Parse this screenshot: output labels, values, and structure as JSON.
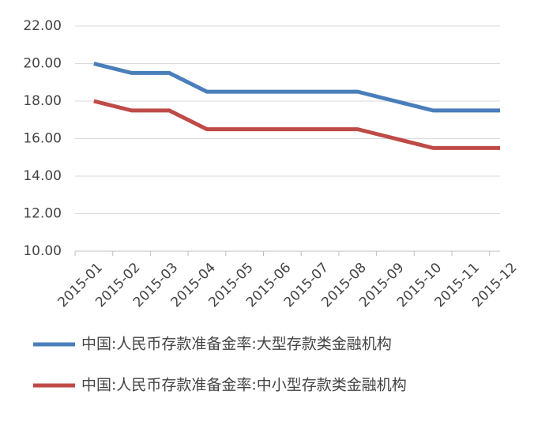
{
  "chart_data": {
    "type": "line",
    "categories": [
      "2015-01",
      "2015-02",
      "2015-03",
      "2015-04",
      "2015-05",
      "2015-06",
      "2015-07",
      "2015-08",
      "2015-09",
      "2015-10",
      "2015-11",
      "2015-12"
    ],
    "series": [
      {
        "name": "中国:人民币存款准备金率:大型存款类金融机构",
        "color": "#4a7ebb",
        "values": [
          20,
          19.5,
          19.5,
          18.5,
          18.5,
          18.5,
          18.5,
          18.5,
          18,
          17.5,
          17.5,
          17.5
        ]
      },
      {
        "name": "中国:人民币存款准备金率:中小型存款类金融机构",
        "color": "#be4b48",
        "values": [
          18,
          17.5,
          17.5,
          16.5,
          16.5,
          16.5,
          16.5,
          16.5,
          16,
          15.5,
          15.5,
          15.5
        ]
      }
    ],
    "ylim": [
      10,
      22
    ],
    "yticks": [
      {
        "value": 10,
        "label": "10.00"
      },
      {
        "value": 12,
        "label": "12.00"
      },
      {
        "value": 14,
        "label": "14.00"
      },
      {
        "value": 16,
        "label": "16.00"
      },
      {
        "value": 18,
        "label": "18.00"
      },
      {
        "value": 20,
        "label": "20.00"
      },
      {
        "value": 22,
        "label": "22.00"
      }
    ],
    "grid": true
  }
}
